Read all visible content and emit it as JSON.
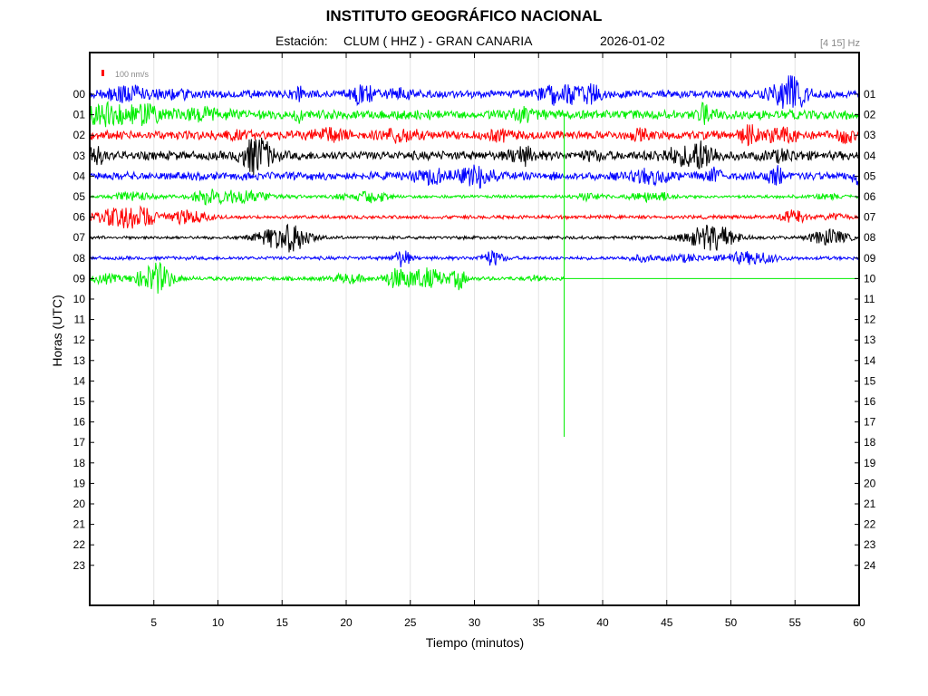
{
  "header": {
    "title": "INSTITUTO GEOGRÁFICO NACIONAL",
    "station_prefix": "Estación:",
    "station": "CLUM ( HHZ ) - GRAN CANARIA",
    "date": "2026-01-02",
    "filter": "[4 15] Hz"
  },
  "chart_data": {
    "type": "line",
    "title": "INSTITUTO GEOGRÁFICO NACIONAL",
    "xlabel": "Tiempo (minutos)",
    "ylabel": "Horas (UTC)",
    "xlim": [
      0,
      60
    ],
    "x_ticks": [
      5,
      10,
      15,
      20,
      25,
      30,
      35,
      40,
      45,
      50,
      55,
      60
    ],
    "y_ticks_left": [
      "00",
      "01",
      "02",
      "03",
      "04",
      "05",
      "06",
      "07",
      "08",
      "09",
      "10",
      "11",
      "12",
      "13",
      "14",
      "15",
      "16",
      "17",
      "18",
      "19",
      "20",
      "21",
      "22",
      "23"
    ],
    "y_ticks_right": [
      "01",
      "02",
      "03",
      "04",
      "05",
      "06",
      "07",
      "08",
      "09",
      "10",
      "11",
      "12",
      "13",
      "14",
      "15",
      "16",
      "17",
      "18",
      "19",
      "20",
      "21",
      "22",
      "23",
      "24"
    ],
    "scale_bar_label": "100 nm/s",
    "grid": "vertical",
    "trace_colors": [
      "#0000ff",
      "#00ee00",
      "#ff0000",
      "#000000"
    ],
    "record_end_minute": 37,
    "traces": [
      {
        "hour": 0,
        "color": "#0000ff",
        "end_minute": 60,
        "noise": 5.0
      },
      {
        "hour": 1,
        "color": "#00ee00",
        "end_minute": 60,
        "noise": 6.0
      },
      {
        "hour": 2,
        "color": "#ff0000",
        "end_minute": 60,
        "noise": 5.5
      },
      {
        "hour": 3,
        "color": "#000000",
        "end_minute": 60,
        "noise": 5.5
      },
      {
        "hour": 4,
        "color": "#0000ff",
        "end_minute": 60,
        "noise": 5.0
      },
      {
        "hour": 5,
        "color": "#00ee00",
        "end_minute": 60,
        "noise": 2.0
      },
      {
        "hour": 6,
        "color": "#ff0000",
        "end_minute": 60,
        "noise": 2.2
      },
      {
        "hour": 7,
        "color": "#000000",
        "end_minute": 60,
        "noise": 2.0
      },
      {
        "hour": 8,
        "color": "#0000ff",
        "end_minute": 60,
        "noise": 2.2
      },
      {
        "hour": 9,
        "color": "#00ee00",
        "end_minute": 37,
        "noise": 2.5
      }
    ]
  }
}
